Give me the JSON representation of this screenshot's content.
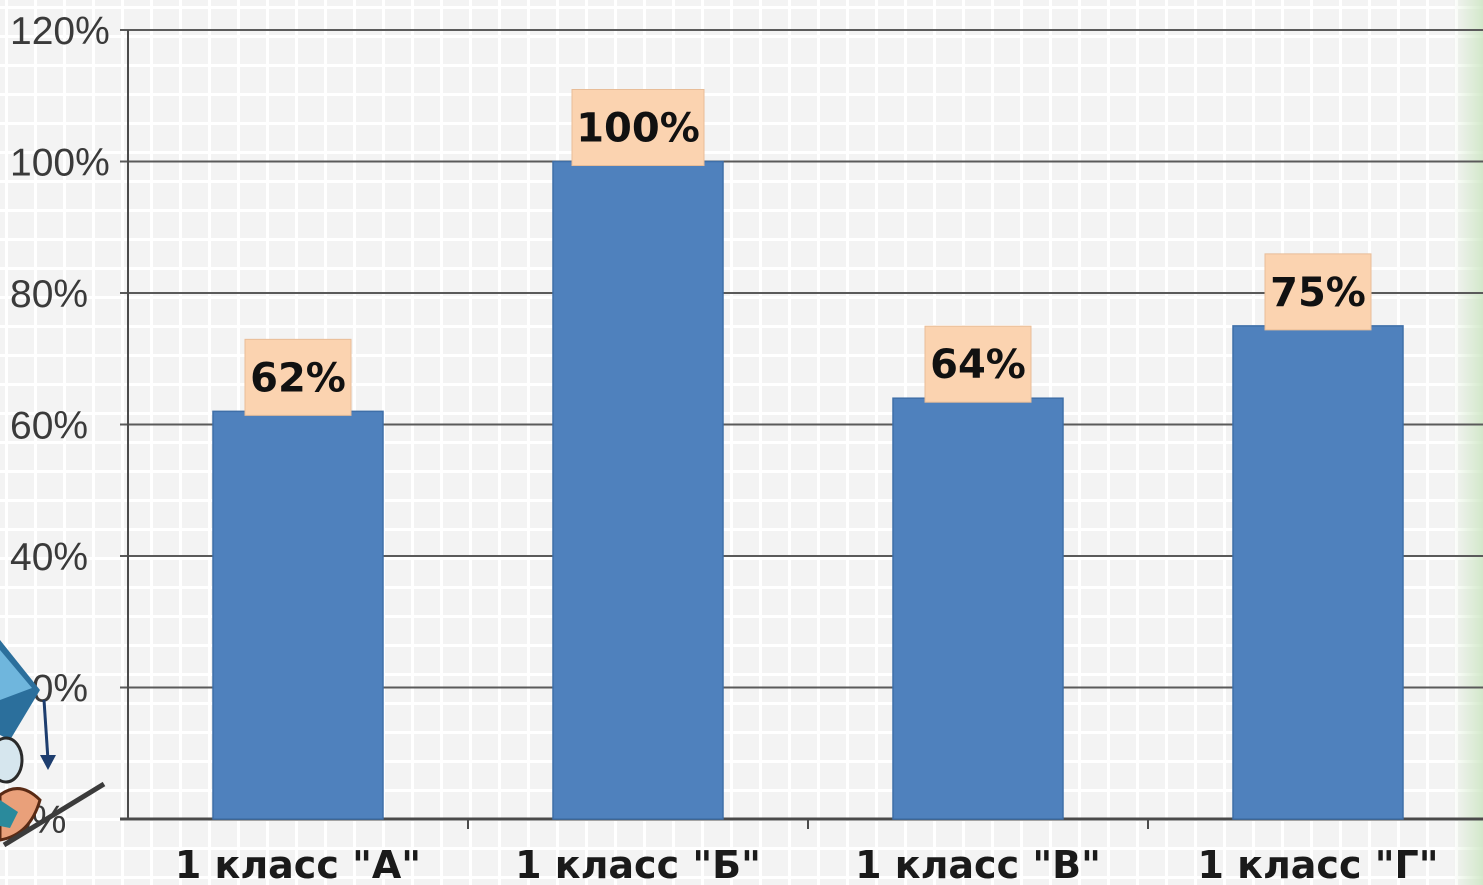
{
  "chart_data": {
    "type": "bar",
    "title": "",
    "xlabel": "",
    "ylabel": "",
    "categories": [
      "1 класс \"А\"",
      "1 класс \"Б\"",
      "1 класс \"В\"",
      "1 класс \"Г\""
    ],
    "values": [
      62,
      100,
      64,
      75
    ],
    "data_labels": [
      "62%",
      "100%",
      "64%",
      "75%"
    ],
    "y_ticks": [
      "0%",
      "20%",
      "40%",
      "60%",
      "80%",
      "100%",
      "120%"
    ],
    "ylim": [
      0,
      120
    ],
    "grid": true,
    "legend": "none",
    "colors": {
      "bar": "#4f81bd",
      "bar_edge": "#3f6fa8",
      "label_box": "#fbd3b0",
      "gridline": "#5a5a5a",
      "axis": "#4a4a4a"
    }
  },
  "decoration": {
    "icon": "teacher-cartoon-icon"
  }
}
